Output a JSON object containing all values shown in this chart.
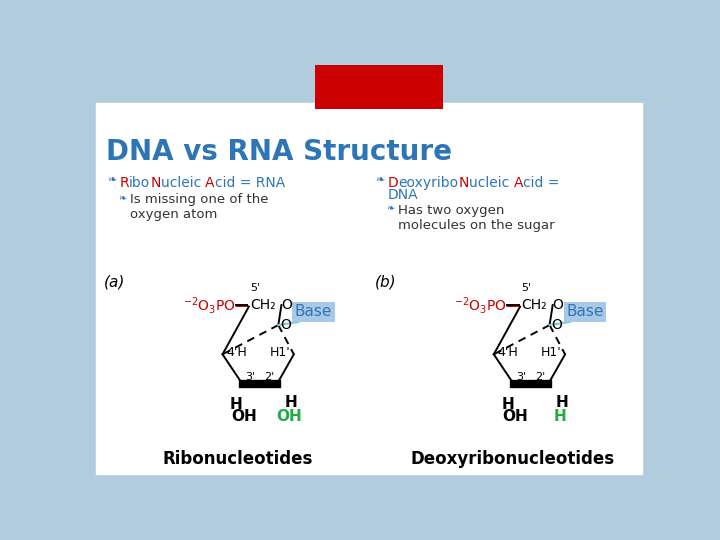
{
  "title": "DNA vs RNA Structure",
  "title_color": "#2E75B6",
  "bg_color": "#FFFFFF",
  "outer_bg": "#B0CCDD",
  "red_rect_color": "#CC0000",
  "bullet_color": "#2E75B6",
  "left_col": {
    "header_red": [
      "R",
      "N",
      "A"
    ],
    "header_blue": [
      "ibo",
      "ucleic ",
      "cid = RNA"
    ],
    "header_full": "RiboNucleic Acid = RNA",
    "sub1": "Is missing one of the\noxygen atom",
    "label": "(a)",
    "bottom_label": "Ribonucleotides",
    "oh2_color": "#22AA44",
    "oh2_text": "OH"
  },
  "right_col": {
    "header_full": "DeoxyriboNucleic Acid =\nDNA",
    "sub1": "Has two oxygen\nmolecules on the sugar",
    "label": "(b)",
    "bottom_label": "Deoxyribonucleotides",
    "oh2_color": "#22AA44",
    "oh2_text": "H"
  },
  "base_box_color": "#A8C8E8",
  "base_text_color": "#2E75B6",
  "phosphate_color": "#CC0000",
  "structure_color": "#000000"
}
